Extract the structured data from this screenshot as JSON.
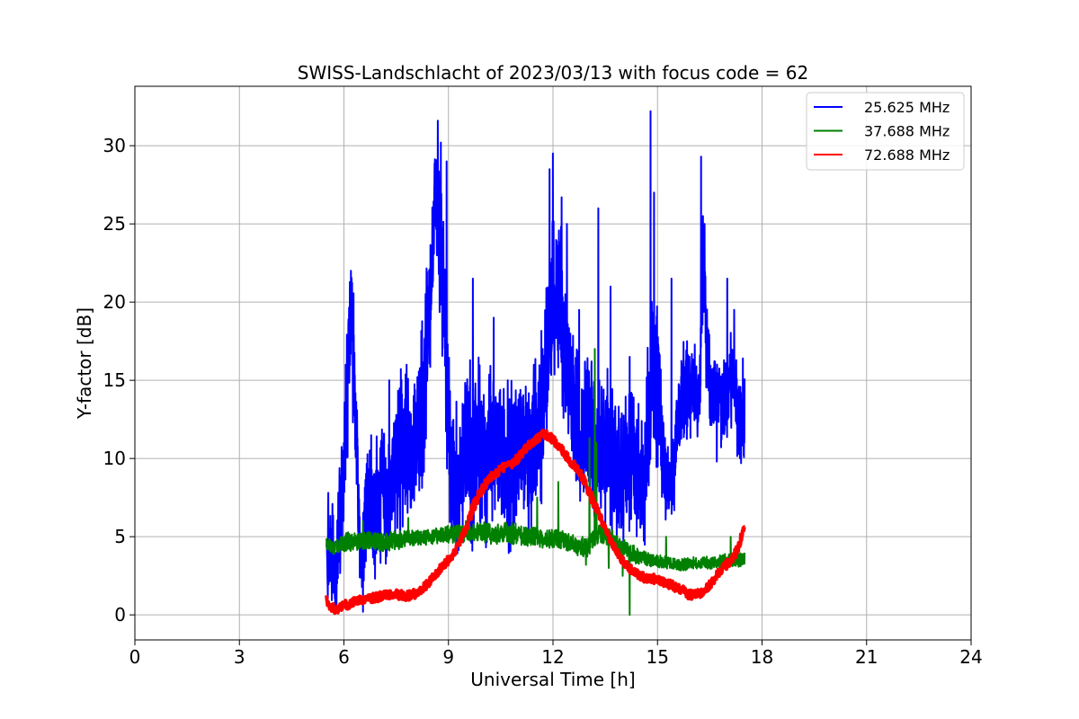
{
  "chart_data": {
    "type": "line",
    "title": "SWISS-Landschlacht of 2023/03/13 with focus code = 62",
    "xlabel": "Universal Time [h]",
    "ylabel": "Y-factor [dB]",
    "xlim": [
      0,
      24
    ],
    "ylim": [
      -1.6,
      33.8
    ],
    "xticks": [
      0,
      3,
      6,
      9,
      12,
      15,
      18,
      21,
      24
    ],
    "yticks": [
      0,
      5,
      10,
      15,
      20,
      25,
      30
    ],
    "grid": true,
    "legend_position": "top-right",
    "series": [
      {
        "name": "25.625 MHz",
        "color": "#0000ff",
        "line_width": 2,
        "x": [
          5.5,
          5.6,
          5.75,
          5.9,
          6.0,
          6.1,
          6.2,
          6.35,
          6.5,
          6.7,
          6.9,
          7.1,
          7.3,
          7.5,
          7.7,
          7.9,
          8.1,
          8.3,
          8.5,
          8.65,
          8.8,
          8.95,
          9.1,
          9.3,
          9.5,
          9.7,
          9.9,
          10.1,
          10.3,
          10.5,
          10.7,
          10.9,
          11.1,
          11.3,
          11.5,
          11.7,
          11.85,
          12.0,
          12.2,
          12.4,
          12.6,
          12.8,
          13.0,
          13.2,
          13.4,
          13.6,
          13.8,
          14.0,
          14.2,
          14.4,
          14.6,
          14.8,
          15.0,
          15.2,
          15.4,
          15.6,
          15.8,
          16.0,
          16.2,
          16.3,
          16.5,
          16.7,
          16.9,
          17.1,
          17.3,
          17.5
        ],
        "y": [
          3.0,
          4.5,
          2.5,
          6.0,
          9.0,
          15.0,
          20.0,
          12.0,
          3.0,
          8.0,
          6.0,
          9.0,
          7.0,
          10.0,
          11.0,
          9.0,
          12.0,
          13.0,
          22.0,
          27.0,
          23.0,
          16.0,
          9.0,
          8.0,
          12.0,
          10.0,
          11.0,
          9.0,
          12.0,
          10.0,
          9.0,
          10.5,
          11.0,
          10.0,
          11.0,
          13.0,
          17.0,
          20.0,
          21.0,
          16.0,
          13.0,
          10.0,
          13.0,
          9.0,
          12.0,
          10.0,
          9.0,
          8.0,
          11.0,
          9.0,
          8.0,
          14.0,
          16.0,
          9.0,
          8.0,
          13.0,
          14.0,
          15.0,
          13.5,
          22.0,
          14.0,
          14.5,
          13.0,
          15.0,
          13.0,
          12.0
        ],
        "spread": [
          1.5,
          2.5,
          2.0,
          3.0,
          3.5,
          4.0,
          3.0,
          3.0,
          2.0,
          3.5,
          3.0,
          3.5,
          3.0,
          3.5,
          3.5,
          3.5,
          3.5,
          4.0,
          3.5,
          3.5,
          4.0,
          4.0,
          4.0,
          3.5,
          3.5,
          4.0,
          3.5,
          3.5,
          3.5,
          3.5,
          3.5,
          3.5,
          3.5,
          3.5,
          3.5,
          3.5,
          4.0,
          4.0,
          4.0,
          4.0,
          3.5,
          3.5,
          4.0,
          3.5,
          3.5,
          3.5,
          3.0,
          3.0,
          3.5,
          3.0,
          3.0,
          4.0,
          4.0,
          2.0,
          2.0,
          2.5,
          2.5,
          2.0,
          2.0,
          3.0,
          2.0,
          2.0,
          2.0,
          2.0,
          2.0,
          2.0
        ],
        "peaks": [
          {
            "x": 5.55,
            "y": 7.8
          },
          {
            "x": 5.95,
            "y": 10.5
          },
          {
            "x": 6.05,
            "y": 16.0
          },
          {
            "x": 6.2,
            "y": 22.0
          },
          {
            "x": 6.25,
            "y": 18.5
          },
          {
            "x": 6.55,
            "y": 0.2
          },
          {
            "x": 7.3,
            "y": 15.0
          },
          {
            "x": 7.8,
            "y": 16.0
          },
          {
            "x": 8.4,
            "y": 21.0
          },
          {
            "x": 8.55,
            "y": 25.5
          },
          {
            "x": 8.7,
            "y": 28.5
          },
          {
            "x": 8.78,
            "y": 30.2
          },
          {
            "x": 8.95,
            "y": 29.0
          },
          {
            "x": 9.25,
            "y": 4.0
          },
          {
            "x": 9.7,
            "y": 21.5
          },
          {
            "x": 10.3,
            "y": 19.0
          },
          {
            "x": 10.7,
            "y": 15.0
          },
          {
            "x": 11.45,
            "y": 16.0
          },
          {
            "x": 11.9,
            "y": 28.5
          },
          {
            "x": 12.0,
            "y": 29.5
          },
          {
            "x": 12.25,
            "y": 26.7
          },
          {
            "x": 12.4,
            "y": 25.0
          },
          {
            "x": 12.75,
            "y": 19.5
          },
          {
            "x": 13.3,
            "y": 26.0
          },
          {
            "x": 13.65,
            "y": 21.0
          },
          {
            "x": 14.2,
            "y": 16.5
          },
          {
            "x": 14.55,
            "y": 5.8
          },
          {
            "x": 14.8,
            "y": 32.2
          },
          {
            "x": 14.9,
            "y": 27.0
          },
          {
            "x": 15.2,
            "y": 7.5
          },
          {
            "x": 15.4,
            "y": 21.5
          },
          {
            "x": 15.85,
            "y": 17.5
          },
          {
            "x": 16.25,
            "y": 29.3
          },
          {
            "x": 16.35,
            "y": 25.0
          },
          {
            "x": 16.7,
            "y": 9.8
          },
          {
            "x": 17.0,
            "y": 21.5
          },
          {
            "x": 17.2,
            "y": 19.5
          },
          {
            "x": 17.4,
            "y": 9.7
          },
          {
            "x": 17.45,
            "y": 16.4
          }
        ]
      },
      {
        "name": "37.688 MHz",
        "color": "#008000",
        "line_width": 2,
        "x": [
          5.5,
          5.7,
          5.9,
          6.1,
          6.4,
          6.7,
          7.0,
          7.3,
          7.6,
          7.9,
          8.2,
          8.5,
          8.8,
          9.1,
          9.4,
          9.7,
          10.0,
          10.3,
          10.6,
          10.9,
          11.2,
          11.5,
          11.8,
          12.1,
          12.4,
          12.7,
          13.0,
          13.3,
          13.6,
          13.9,
          14.2,
          14.5,
          14.8,
          15.1,
          15.4,
          15.7,
          16.0,
          16.3,
          16.6,
          16.9,
          17.2,
          17.5
        ],
        "y": [
          4.6,
          4.3,
          4.5,
          4.7,
          4.6,
          4.8,
          4.6,
          4.7,
          4.8,
          4.9,
          4.9,
          5.0,
          5.1,
          5.2,
          5.1,
          5.2,
          5.3,
          5.1,
          5.3,
          5.2,
          5.0,
          5.0,
          4.8,
          4.9,
          4.7,
          4.4,
          4.3,
          5.2,
          5.0,
          4.5,
          4.0,
          3.7,
          3.5,
          3.4,
          3.3,
          3.2,
          3.3,
          3.4,
          3.3,
          3.5,
          3.5,
          3.5
        ],
        "spread": [
          0.4,
          0.4,
          0.5,
          0.6,
          0.6,
          0.6,
          0.6,
          0.6,
          0.6,
          0.5,
          0.5,
          0.5,
          0.5,
          0.6,
          0.6,
          0.6,
          0.7,
          0.6,
          0.7,
          0.7,
          0.6,
          0.6,
          0.6,
          0.6,
          0.6,
          0.6,
          0.6,
          0.6,
          0.6,
          0.6,
          0.6,
          0.5,
          0.4,
          0.4,
          0.4,
          0.4,
          0.4,
          0.4,
          0.4,
          0.4,
          0.4,
          0.5
        ],
        "peaks": [
          {
            "x": 5.5,
            "y": 4.9
          },
          {
            "x": 6.55,
            "y": 6.0
          },
          {
            "x": 7.85,
            "y": 6.2
          },
          {
            "x": 9.5,
            "y": 6.0
          },
          {
            "x": 11.55,
            "y": 7.5
          },
          {
            "x": 12.15,
            "y": 8.5
          },
          {
            "x": 12.85,
            "y": 5.0
          },
          {
            "x": 12.95,
            "y": 3.2
          },
          {
            "x": 13.05,
            "y": 11.3
          },
          {
            "x": 13.2,
            "y": 17.0
          },
          {
            "x": 13.25,
            "y": 11.0
          },
          {
            "x": 13.6,
            "y": 3.0
          },
          {
            "x": 14.0,
            "y": 2.5
          },
          {
            "x": 14.2,
            "y": 0.0
          },
          {
            "x": 14.25,
            "y": 4.0
          },
          {
            "x": 15.25,
            "y": 5.0
          },
          {
            "x": 17.1,
            "y": 5.0
          },
          {
            "x": 17.2,
            "y": 3.8
          }
        ]
      },
      {
        "name": "72.688 MHz",
        "color": "#ff0000",
        "line_width": 4,
        "x": [
          5.5,
          5.6,
          5.8,
          6.0,
          6.3,
          6.6,
          6.9,
          7.2,
          7.5,
          7.8,
          8.1,
          8.4,
          8.7,
          9.0,
          9.3,
          9.5,
          9.7,
          9.9,
          10.1,
          10.3,
          10.5,
          10.7,
          10.9,
          11.1,
          11.3,
          11.5,
          11.7,
          11.9,
          12.1,
          12.3,
          12.5,
          12.7,
          12.9,
          13.1,
          13.3,
          13.5,
          13.7,
          13.9,
          14.1,
          14.3,
          14.5,
          14.7,
          14.9,
          15.1,
          15.3,
          15.5,
          15.7,
          15.9,
          16.1,
          16.3,
          16.5,
          16.7,
          16.9,
          17.1,
          17.3,
          17.5
        ],
        "y": [
          1.0,
          0.4,
          0.4,
          0.6,
          0.8,
          1.0,
          1.1,
          1.3,
          1.3,
          1.2,
          1.4,
          2.0,
          2.8,
          3.5,
          4.5,
          5.5,
          6.8,
          7.8,
          8.5,
          9.0,
          9.3,
          9.5,
          9.8,
          10.3,
          10.8,
          11.2,
          11.6,
          11.4,
          11.0,
          10.4,
          9.8,
          9.3,
          8.6,
          7.5,
          6.5,
          5.5,
          4.6,
          3.8,
          3.2,
          2.8,
          2.5,
          2.3,
          2.3,
          2.2,
          2.0,
          1.8,
          1.6,
          1.3,
          1.3,
          1.5,
          1.9,
          2.5,
          3.1,
          3.4,
          4.2,
          5.8
        ],
        "spread": [
          0.3,
          0.3,
          0.3,
          0.3,
          0.3,
          0.3,
          0.3,
          0.3,
          0.3,
          0.3,
          0.3,
          0.3,
          0.3,
          0.3,
          0.3,
          0.3,
          0.4,
          0.4,
          0.3,
          0.3,
          0.3,
          0.3,
          0.3,
          0.3,
          0.3,
          0.3,
          0.3,
          0.3,
          0.3,
          0.3,
          0.3,
          0.3,
          0.3,
          0.4,
          0.4,
          0.3,
          0.3,
          0.3,
          0.3,
          0.3,
          0.3,
          0.3,
          0.3,
          0.3,
          0.3,
          0.3,
          0.3,
          0.3,
          0.3,
          0.3,
          0.3,
          0.3,
          0.3,
          0.3,
          0.3,
          0.4
        ],
        "peaks": []
      }
    ]
  }
}
